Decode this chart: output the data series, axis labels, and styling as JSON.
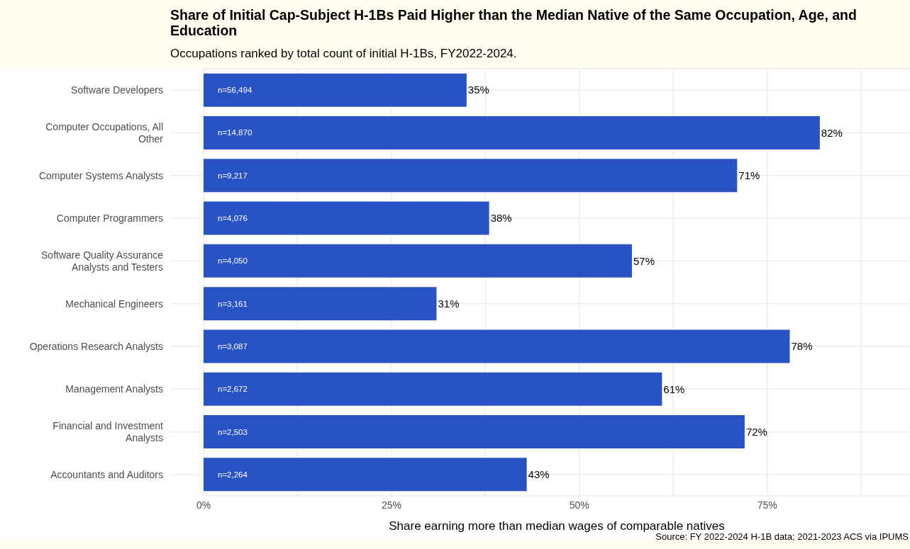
{
  "chart_data": {
    "type": "bar",
    "orientation": "horizontal",
    "title": "Share of Initial Cap-Subject H-1Bs Paid Higher than the Median Native of the Same Occupation, Age, and Education",
    "subtitle": "Occupations ranked by total count of initial H-1Bs, FY2022-2024.",
    "xlabel": "Share earning more than median wages of comparable natives",
    "categories": [
      "Software Developers",
      "Computer Occupations, All Other",
      "Computer Systems Analysts",
      "Computer Programmers",
      "Software Quality Assurance Analysts and Testers",
      "Mechanical Engineers",
      "Operations Research Analysts",
      "Management Analysts",
      "Financial and Investment Analysts",
      "Accountants and Auditors"
    ],
    "values": [
      35,
      82,
      71,
      38,
      57,
      31,
      78,
      61,
      72,
      43
    ],
    "value_labels": [
      "35%",
      "82%",
      "71%",
      "38%",
      "57%",
      "31%",
      "78%",
      "61%",
      "72%",
      "43%"
    ],
    "color": "#2952c4",
    "xlim": [
      0,
      94
    ],
    "xticks": [
      {
        "value": 0,
        "label": "0%"
      },
      {
        "value": 12.5,
        "label": null
      },
      {
        "value": 25,
        "label": "25%"
      },
      {
        "value": 37.5,
        "label": null
      },
      {
        "value": 50,
        "label": "50%"
      },
      {
        "value": 62.5,
        "label": null
      },
      {
        "value": 75,
        "label": "75%"
      },
      {
        "value": 87.5,
        "label": null
      }
    ],
    "grid": true,
    "annotations": [
      {
        "text": "n=56,494",
        "y": "Software Developers"
      },
      {
        "text": "n=14,870",
        "y": "Computer Occupations, All Other"
      },
      {
        "text": "n=9,217",
        "y": "Computer Systems Analysts"
      },
      {
        "text": "n=4,076",
        "y": "Computer Programmers"
      },
      {
        "text": "n=4,050",
        "y": "Software Quality Assurance Analysts and Testers"
      },
      {
        "text": "n=3,161",
        "y": "Mechanical Engineers"
      },
      {
        "text": "n=3,087",
        "y": "Operations Research Analysts"
      },
      {
        "text": "n=2,672",
        "y": "Management Analysts"
      },
      {
        "text": "n=2,503",
        "y": "Financial and Investment Analysts"
      },
      {
        "text": "n=2,264",
        "y": "Accountants and Auditors"
      },
      "Source: FY 2022-2024 H-1B data; 2021-2023 ACS via IPUMS"
    ]
  }
}
